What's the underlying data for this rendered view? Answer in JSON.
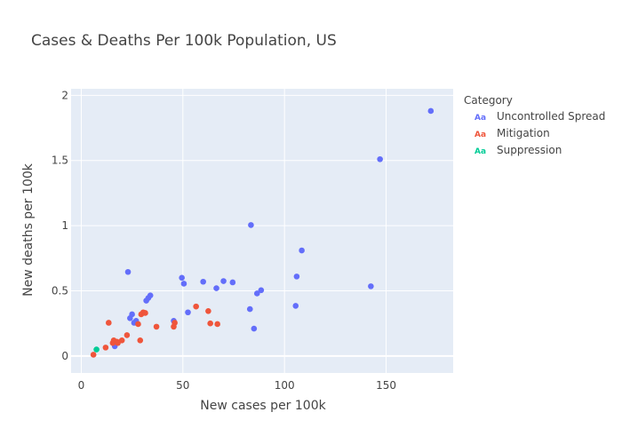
{
  "chart_data": {
    "type": "scatter",
    "title": "Cases & Deaths Per 100k Population, US",
    "xlabel": "New cases per 100k",
    "ylabel": "New deaths per 100k",
    "xlim": [
      -5,
      183
    ],
    "ylim": [
      -0.13,
      2.05
    ],
    "x_ticks": [
      0,
      50,
      100,
      150
    ],
    "x_tick_labels": [
      "0",
      "50",
      "100",
      "150"
    ],
    "y_ticks": [
      0,
      0.5,
      1,
      1.5,
      2
    ],
    "y_tick_labels": [
      "0",
      "0.5",
      "1",
      "1.5",
      "2"
    ],
    "grid": true,
    "legend": {
      "title": "Category",
      "position": "right",
      "symbol_label": "Aa"
    },
    "series": [
      {
        "name": "Uncontrolled Spread",
        "color": "#636efa",
        "points": [
          [
            172,
            1.88
          ],
          [
            147,
            1.51
          ],
          [
            142.5,
            0.535
          ],
          [
            108.5,
            0.81
          ],
          [
            106,
            0.61
          ],
          [
            105.5,
            0.385
          ],
          [
            83.5,
            1.005
          ],
          [
            83,
            0.36
          ],
          [
            85,
            0.21
          ],
          [
            86.5,
            0.48
          ],
          [
            88.5,
            0.505
          ],
          [
            70,
            0.575
          ],
          [
            74.5,
            0.565
          ],
          [
            66.5,
            0.52
          ],
          [
            60,
            0.57
          ],
          [
            49.5,
            0.6
          ],
          [
            50.5,
            0.555
          ],
          [
            52.5,
            0.335
          ],
          [
            45.5,
            0.27
          ],
          [
            23,
            0.645
          ],
          [
            24,
            0.29
          ],
          [
            25,
            0.32
          ],
          [
            26,
            0.255
          ],
          [
            27,
            0.27
          ],
          [
            32,
            0.425
          ],
          [
            33,
            0.445
          ],
          [
            34,
            0.465
          ],
          [
            16.5,
            0.075
          ]
        ]
      },
      {
        "name": "Mitigation",
        "color": "#ef553b",
        "points": [
          [
            6,
            0.01
          ],
          [
            12,
            0.065
          ],
          [
            13.5,
            0.255
          ],
          [
            15.5,
            0.1
          ],
          [
            16,
            0.12
          ],
          [
            17.5,
            0.11
          ],
          [
            18,
            0.1
          ],
          [
            20,
            0.12
          ],
          [
            22.5,
            0.16
          ],
          [
            28,
            0.245
          ],
          [
            29,
            0.12
          ],
          [
            29.5,
            0.32
          ],
          [
            30.5,
            0.335
          ],
          [
            31.5,
            0.33
          ],
          [
            37,
            0.225
          ],
          [
            45.5,
            0.225
          ],
          [
            46,
            0.255
          ],
          [
            56.5,
            0.38
          ],
          [
            62.5,
            0.345
          ],
          [
            63.5,
            0.25
          ],
          [
            67,
            0.245
          ]
        ]
      },
      {
        "name": "Suppression",
        "color": "#00cc96",
        "points": [
          [
            7.5,
            0.05
          ]
        ]
      }
    ]
  }
}
